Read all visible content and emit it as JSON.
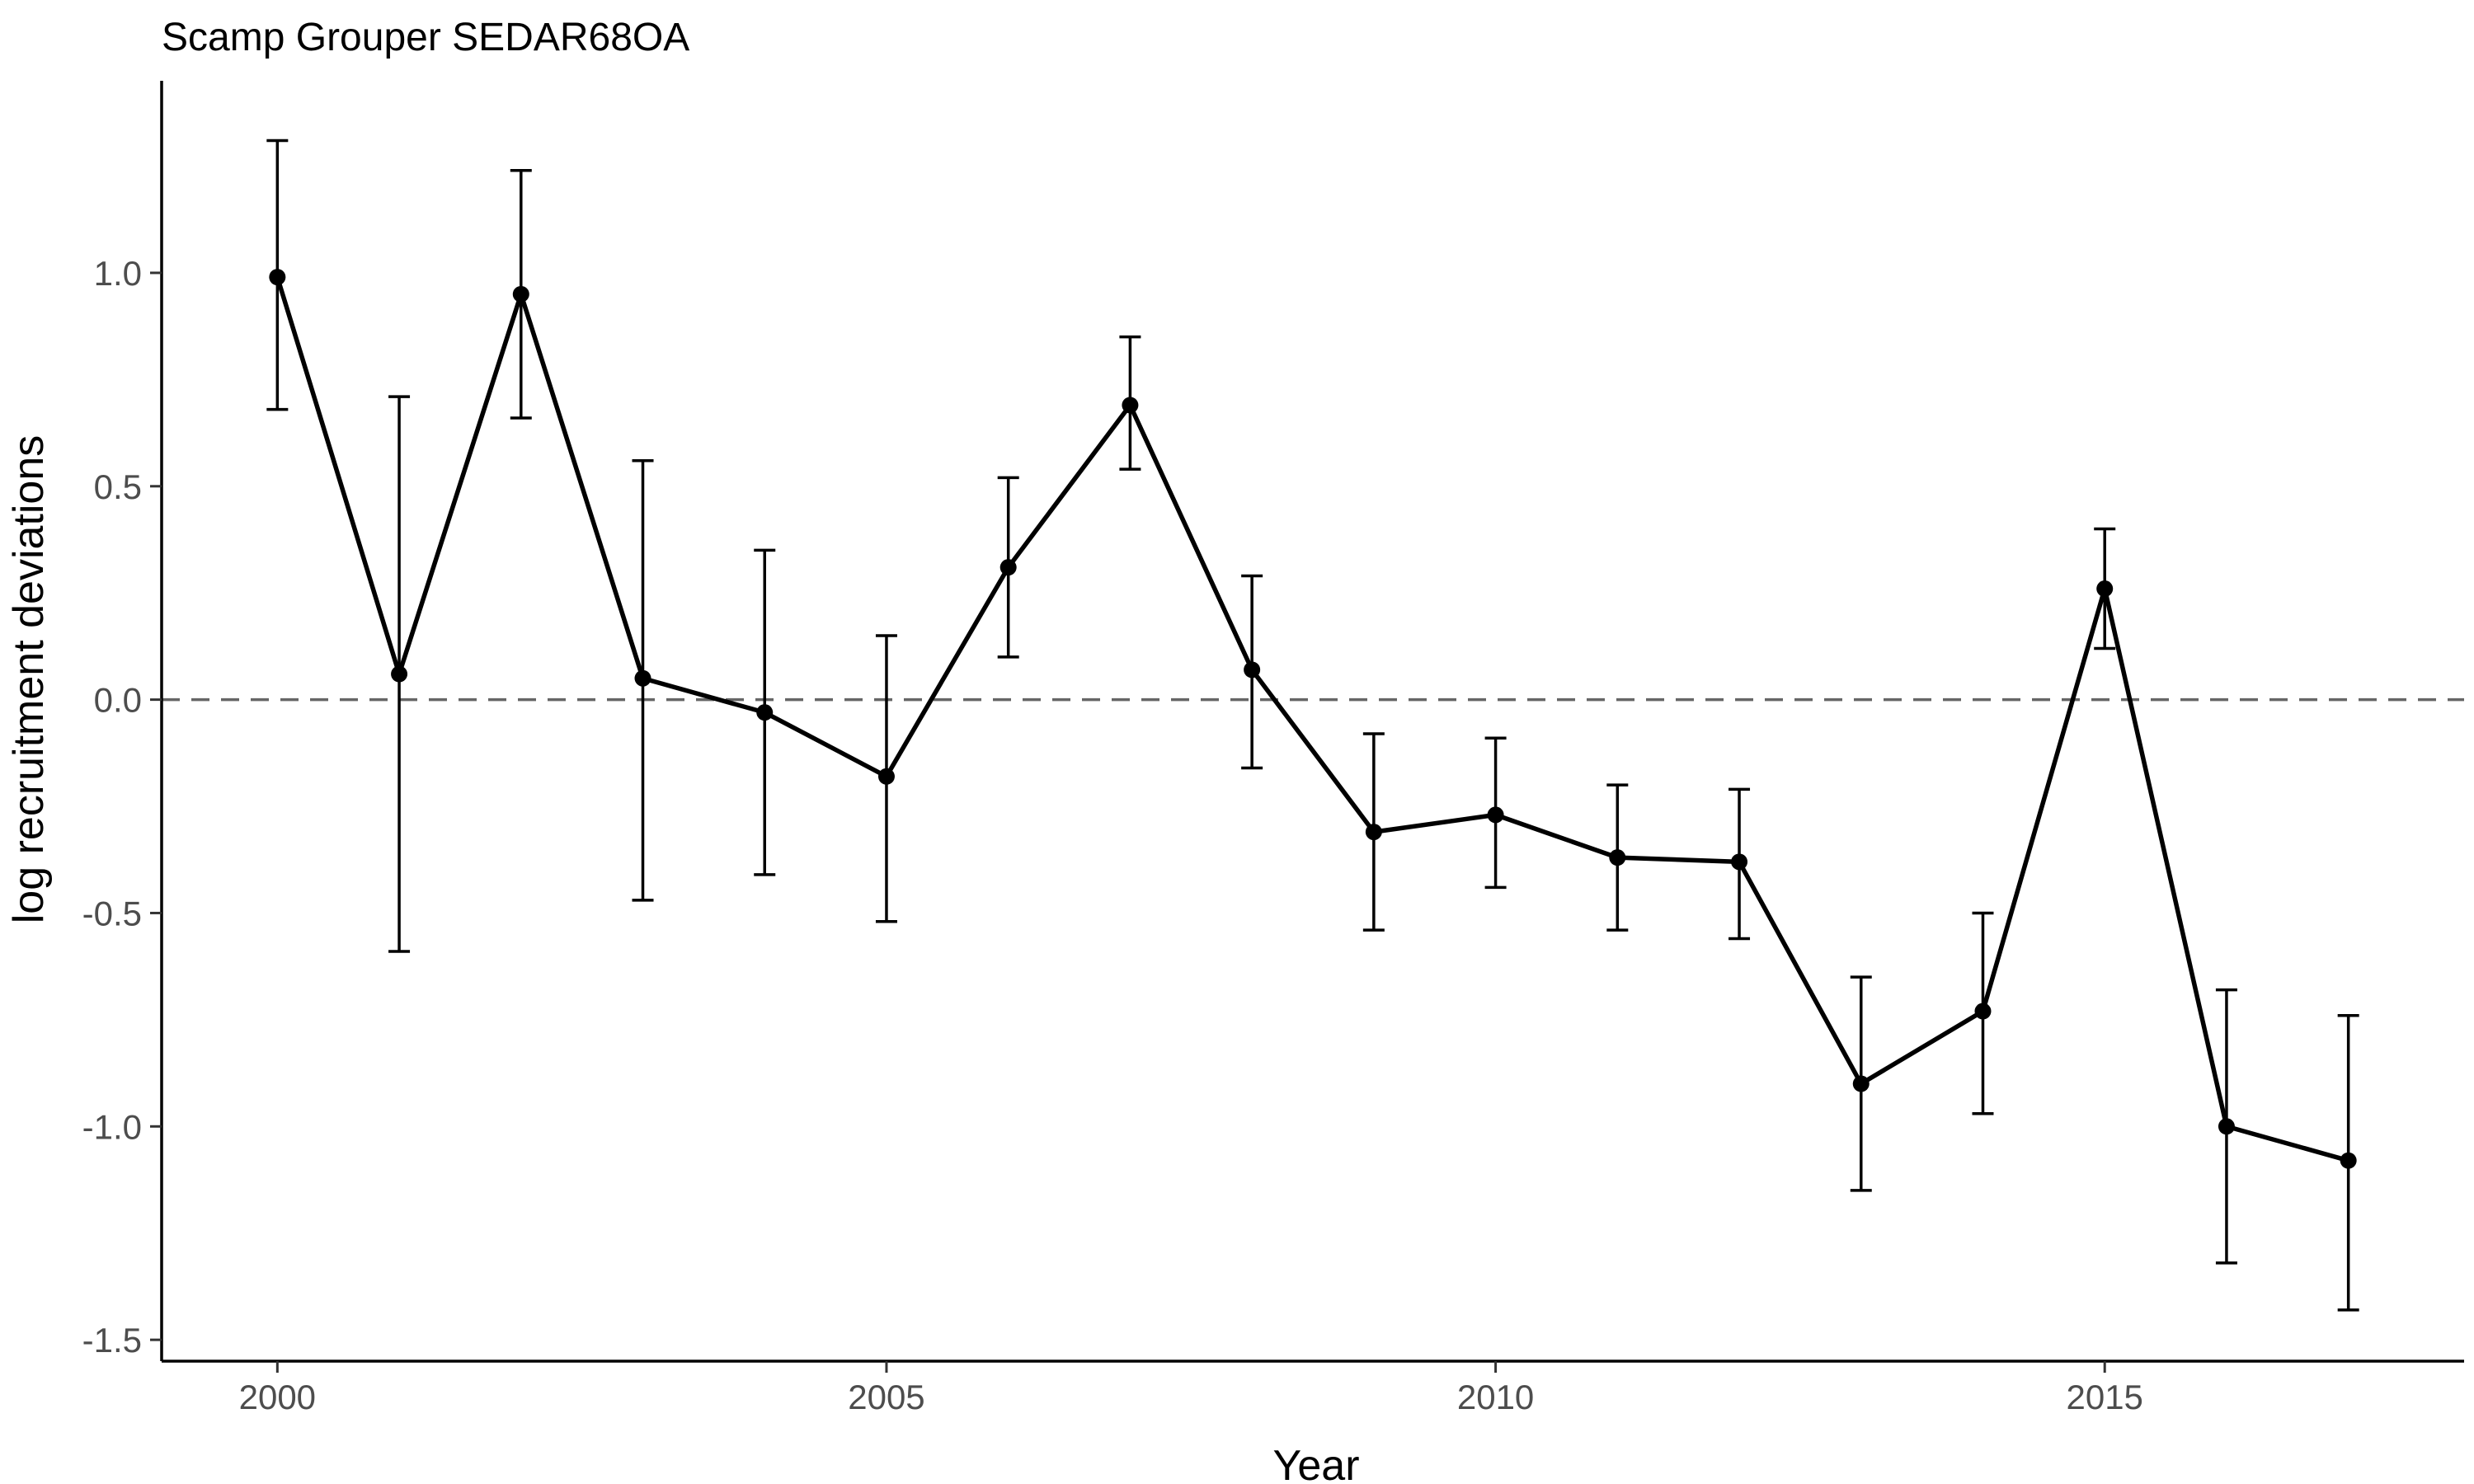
{
  "chart_data": {
    "type": "line",
    "title": "Scamp Grouper SEDAR68OA",
    "xlabel": "Year",
    "ylabel": "log recruitment deviations",
    "xlim": [
      1999.05,
      2017.95
    ],
    "ylim": [
      -1.55,
      1.45
    ],
    "x_ticks": [
      2000,
      2005,
      2010,
      2015
    ],
    "y_ticks": [
      -1.5,
      -1.0,
      -0.5,
      0.0,
      0.5,
      1.0
    ],
    "y_tick_labels": [
      "-1.5",
      "-1.0",
      "-0.5",
      "0.0",
      "0.5",
      "1.0"
    ],
    "x_tick_labels": [
      "2000",
      "2005",
      "2010",
      "2015"
    ],
    "reference_line": {
      "y": 0.0,
      "style": "dashed",
      "color": "#666666"
    },
    "grid": false,
    "legend": "none",
    "colors": {
      "series": "#000000",
      "reference": "#666666",
      "tick_labels": "#4d4d4d"
    },
    "series": [
      {
        "x": [
          2000,
          2001,
          2002,
          2003,
          2004,
          2005,
          2006,
          2007,
          2008,
          2009,
          2010,
          2011,
          2012,
          2013,
          2014,
          2015,
          2016,
          2017
        ],
        "y": [
          0.99,
          0.06,
          0.95,
          0.05,
          -0.03,
          -0.18,
          0.31,
          0.69,
          0.07,
          -0.31,
          -0.27,
          -0.37,
          -0.38,
          -0.9,
          -0.73,
          0.26,
          -1.0,
          -1.08
        ],
        "lower": [
          0.68,
          -0.59,
          0.66,
          -0.47,
          -0.41,
          -0.52,
          0.1,
          0.54,
          -0.16,
          -0.54,
          -0.44,
          -0.54,
          -0.56,
          -1.15,
          -0.97,
          0.12,
          -1.32,
          -1.43
        ],
        "upper": [
          1.31,
          0.71,
          1.24,
          0.56,
          0.35,
          0.15,
          0.52,
          0.85,
          0.29,
          -0.08,
          -0.09,
          -0.2,
          -0.21,
          -0.65,
          -0.5,
          0.4,
          -0.68,
          -0.74
        ]
      }
    ]
  }
}
